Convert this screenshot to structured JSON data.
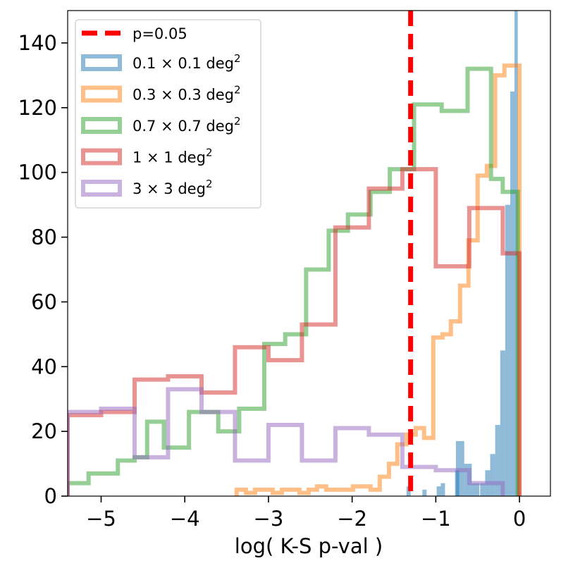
{
  "chart_data": {
    "type": "histogram",
    "xlabel": "log( K-S p-val )",
    "ylabel": "",
    "xlim": [
      -5.4,
      0.37
    ],
    "ylim": [
      0,
      150
    ],
    "xticks": [
      -5,
      -4,
      -3,
      -2,
      -1,
      0
    ],
    "xtick_labels": [
      "−5",
      "−4",
      "−3",
      "−2",
      "−1",
      "0"
    ],
    "yticks": [
      0,
      20,
      40,
      60,
      80,
      100,
      120,
      140
    ],
    "ytick_labels": [
      "0",
      "20",
      "40",
      "60",
      "80",
      "100",
      "120",
      "140"
    ],
    "legend_position": "upper-left",
    "threshold": {
      "name": "p=0.05",
      "x": -1.301,
      "color": "#ff0000",
      "style": "dashed"
    },
    "series": [
      {
        "name_base": "0.1 × 0.1 deg",
        "name_sup": "2",
        "color": "#1f77b4",
        "opacity": 0.5,
        "histtype": "bar",
        "bins": [
          [
            -1.35,
            -1.3,
            3
          ],
          [
            -1.16,
            -1.11,
            2
          ],
          [
            -0.99,
            -0.94,
            3
          ],
          [
            -0.94,
            -0.89,
            4
          ],
          [
            -0.77,
            -0.72,
            8
          ],
          [
            -0.76,
            -0.66,
            17
          ],
          [
            -0.66,
            -0.57,
            10
          ],
          [
            -0.57,
            -0.48,
            4
          ],
          [
            -0.47,
            -0.41,
            4
          ],
          [
            -0.41,
            -0.35,
            8
          ],
          [
            -0.35,
            -0.29,
            13
          ],
          [
            -0.29,
            -0.23,
            22
          ],
          [
            -0.23,
            -0.17,
            45
          ],
          [
            -0.17,
            -0.11,
            90
          ],
          [
            -0.11,
            -0.06,
            125
          ],
          [
            -0.06,
            -0.02,
            150
          ]
        ]
      },
      {
        "name_base": "0.3 × 0.3 deg",
        "name_sup": "2",
        "color": "#ff7f0e",
        "opacity": 0.5,
        "histtype": "step",
        "bins": [
          [
            -3.38,
            -3.27,
            2
          ],
          [
            -3.27,
            -3.16,
            1
          ],
          [
            -3.16,
            -3.06,
            2
          ],
          [
            -3.06,
            -2.95,
            2
          ],
          [
            -2.95,
            -2.84,
            1
          ],
          [
            -2.84,
            -2.74,
            2
          ],
          [
            -2.74,
            -2.63,
            2
          ],
          [
            -2.63,
            -2.52,
            1
          ],
          [
            -2.52,
            -2.42,
            2
          ],
          [
            -2.42,
            -2.31,
            3
          ],
          [
            -2.31,
            -2.2,
            2
          ],
          [
            -2.2,
            -2.1,
            2
          ],
          [
            -2.1,
            -1.99,
            2
          ],
          [
            -1.99,
            -1.88,
            3
          ],
          [
            -1.88,
            -1.78,
            3
          ],
          [
            -1.78,
            -1.67,
            2
          ],
          [
            -1.67,
            -1.56,
            6
          ],
          [
            -1.56,
            -1.46,
            10
          ],
          [
            -1.46,
            -1.35,
            16
          ],
          [
            -1.35,
            -1.24,
            19
          ],
          [
            -1.24,
            -1.14,
            21
          ],
          [
            -1.14,
            -1.03,
            18
          ],
          [
            -1.03,
            -0.92,
            49
          ],
          [
            -0.92,
            -0.82,
            50
          ],
          [
            -0.82,
            -0.71,
            54
          ],
          [
            -0.71,
            -0.61,
            65
          ],
          [
            -0.61,
            -0.5,
            79
          ],
          [
            -0.5,
            -0.39,
            99
          ],
          [
            -0.39,
            -0.29,
            102
          ],
          [
            -0.29,
            -0.18,
            130
          ],
          [
            -0.18,
            -0.08,
            133
          ],
          [
            -0.08,
            0.0,
            133
          ]
        ]
      },
      {
        "name_base": "0.7 × 0.7 deg",
        "name_sup": "2",
        "color": "#2ca02c",
        "opacity": 0.5,
        "histtype": "step",
        "bins": [
          [
            -5.4,
            -5.15,
            4
          ],
          [
            -5.15,
            -4.8,
            7
          ],
          [
            -4.8,
            -4.6,
            11
          ],
          [
            -4.6,
            -4.45,
            12
          ],
          [
            -4.45,
            -4.25,
            23
          ],
          [
            -4.25,
            -3.95,
            15
          ],
          [
            -3.95,
            -3.6,
            26
          ],
          [
            -3.6,
            -3.35,
            20
          ],
          [
            -3.35,
            -3.05,
            27
          ],
          [
            -3.05,
            -2.8,
            47
          ],
          [
            -2.8,
            -2.55,
            50
          ],
          [
            -2.55,
            -2.28,
            70
          ],
          [
            -2.28,
            -2.05,
            82
          ],
          [
            -2.05,
            -1.78,
            87
          ],
          [
            -1.78,
            -1.55,
            94
          ],
          [
            -1.55,
            -1.26,
            101
          ],
          [
            -1.26,
            -0.93,
            121
          ],
          [
            -0.93,
            -0.62,
            119
          ],
          [
            -0.62,
            -0.34,
            132
          ],
          [
            -0.34,
            -0.2,
            98
          ],
          [
            -0.2,
            -0.02,
            94
          ]
        ]
      },
      {
        "name_base": "1 × 1 deg",
        "name_sup": "2",
        "color": "#d62728",
        "opacity": 0.5,
        "histtype": "step",
        "bins": [
          [
            -5.4,
            -5.0,
            25
          ],
          [
            -5.0,
            -4.6,
            26
          ],
          [
            -4.6,
            -4.2,
            36
          ],
          [
            -4.2,
            -3.8,
            37
          ],
          [
            -3.8,
            -3.4,
            32
          ],
          [
            -3.4,
            -3.0,
            46
          ],
          [
            -3.0,
            -2.6,
            42
          ],
          [
            -2.6,
            -2.2,
            53
          ],
          [
            -2.2,
            -1.8,
            83
          ],
          [
            -1.8,
            -1.4,
            95
          ],
          [
            -1.4,
            -1.0,
            101
          ],
          [
            -1.0,
            -0.6,
            71
          ],
          [
            -0.6,
            -0.2,
            89
          ],
          [
            -0.2,
            0.0,
            75
          ]
        ]
      },
      {
        "name_base": "3 × 3 deg",
        "name_sup": "2",
        "color": "#9467bd",
        "opacity": 0.5,
        "histtype": "step",
        "bins": [
          [
            -5.4,
            -5.0,
            26
          ],
          [
            -5.0,
            -4.6,
            27
          ],
          [
            -4.6,
            -4.2,
            12
          ],
          [
            -4.2,
            -3.8,
            33
          ],
          [
            -3.8,
            -3.4,
            26
          ],
          [
            -3.4,
            -3.0,
            11
          ],
          [
            -3.0,
            -2.6,
            22
          ],
          [
            -2.6,
            -2.2,
            11
          ],
          [
            -2.2,
            -1.8,
            21
          ],
          [
            -1.8,
            -1.4,
            19
          ],
          [
            -1.4,
            -1.0,
            9
          ],
          [
            -1.0,
            -0.6,
            8
          ],
          [
            -0.6,
            -0.2,
            4
          ]
        ]
      }
    ]
  }
}
